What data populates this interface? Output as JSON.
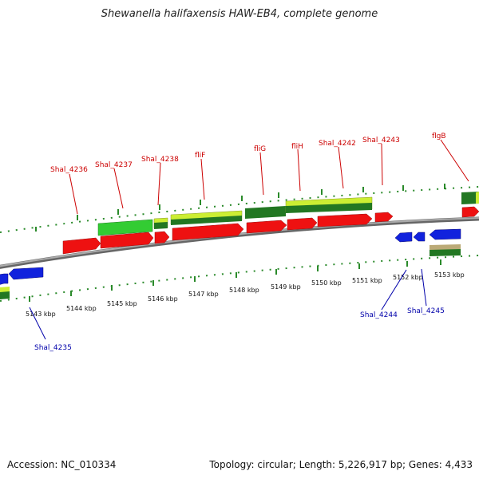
{
  "title": "Shewanella halifaxensis HAW-EB4, complete genome",
  "footer": {
    "accession": "Accession: NC_010334",
    "summary": "Topology: circular; Length: 5,226,917 bp; Genes: 4,433"
  },
  "colors": {
    "forward_gene": "#ee1111",
    "reverse_gene": "#1122dd",
    "backbone": "#888888",
    "tick": "#2a8a2a",
    "forward_label": "#cc0000",
    "reverse_label": "#0000aa",
    "feature_green": "#33cc33",
    "feature_lime": "#ccee33",
    "feature_dark": "#227722",
    "feature_tan": "#bbaa77"
  },
  "scale_labels": [
    "5143 kbp",
    "5144 kbp",
    "5145 kbp",
    "5146 kbp",
    "5147 kbp",
    "5148 kbp",
    "5149 kbp",
    "5150 kbp",
    "5151 kbp",
    "5152 kbp",
    "5153 kbp"
  ],
  "forward_labels": [
    "Shal_4236",
    "Shal_4237",
    "Shal_4238",
    "fliF",
    "fliG",
    "fliH",
    "Shal_4242",
    "Shal_4243",
    "flgB"
  ],
  "reverse_labels": [
    "Shal_4235",
    "Shal_4244",
    "Shal_4245"
  ]
}
